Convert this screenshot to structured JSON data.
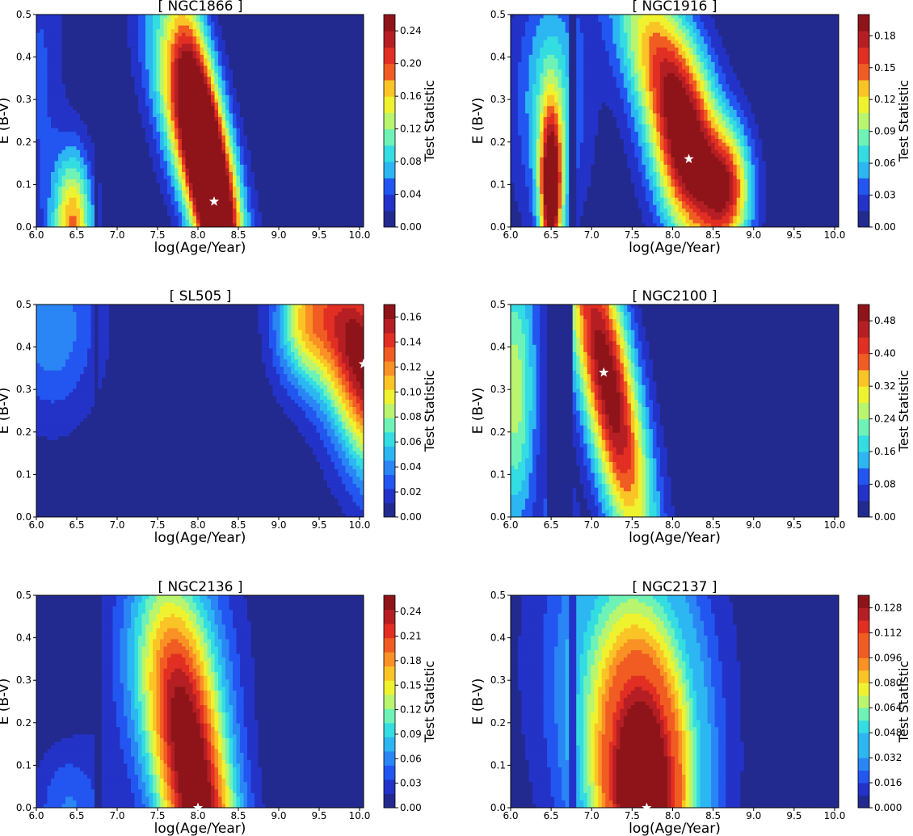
{
  "colors": {
    "jet": [
      "#232a8f",
      "#2333c8",
      "#2356f0",
      "#2a86f5",
      "#2cb6f2",
      "#33dde2",
      "#6ff2b6",
      "#b9f56f",
      "#eff32f",
      "#fbc426",
      "#fa9125",
      "#f05c22",
      "#e22e23",
      "#b51f24",
      "#8f1419"
    ],
    "star": "#ffffff",
    "axis": "#000000"
  },
  "chart_data": [
    {
      "type": "heatmap",
      "title": "[ NGC1866 ]",
      "xlabel": "log(Age/Year)",
      "ylabel": "E (B-V)",
      "colorbar_label": "Test Statistic",
      "xlim": [
        6.0,
        10.05
      ],
      "ylim": [
        0.0,
        0.5
      ],
      "xticks": [
        "6.0",
        "6.5",
        "7.0",
        "7.5",
        "8.0",
        "8.5",
        "9.0",
        "9.5",
        "10.0"
      ],
      "yticks": [
        "0.0",
        "0.1",
        "0.2",
        "0.3",
        "0.4",
        "0.5"
      ],
      "cbar_ticks": [
        "0.00",
        "0.04",
        "0.08",
        "0.12",
        "0.16",
        "0.20",
        "0.24"
      ],
      "vmax": 0.26,
      "levels": 13,
      "best_fit": {
        "x": 8.2,
        "y": 0.06
      },
      "bumps": [
        {
          "x": 8.2,
          "y": 0.06,
          "a": 0.265,
          "sx": 0.33,
          "sy": 0.34,
          "rho": -0.82
        },
        {
          "x": 7.95,
          "y": 0.21,
          "a": 0.19,
          "sx": 0.38,
          "sy": 0.2,
          "rho": -0.7
        },
        {
          "x": 6.45,
          "y": 0.0,
          "a": 0.18,
          "sx": 0.17,
          "sy": 0.12,
          "rho": 0
        },
        {
          "x": 6.05,
          "y": 0.35,
          "a": 0.04,
          "sx": 0.2,
          "sy": 0.3,
          "rho": 0
        }
      ],
      "wall": {
        "from": 6.7,
        "to": 6.78,
        "factor": 0.1
      }
    },
    {
      "type": "heatmap",
      "title": "[ NGC1916 ]",
      "xlabel": "log(Age/Year)",
      "ylabel": "E (B-V)",
      "colorbar_label": "Test Statistic",
      "xlim": [
        6.0,
        10.05
      ],
      "ylim": [
        0.0,
        0.5
      ],
      "xticks": [
        "6.0",
        "6.5",
        "7.0",
        "7.5",
        "8.0",
        "8.5",
        "9.0",
        "9.5",
        "10.0"
      ],
      "yticks": [
        "0.0",
        "0.1",
        "0.2",
        "0.3",
        "0.4",
        "0.5"
      ],
      "cbar_ticks": [
        "0.00",
        "0.03",
        "0.06",
        "0.09",
        "0.12",
        "0.15",
        "0.18"
      ],
      "vmax": 0.2,
      "levels": 13,
      "best_fit": {
        "x": 8.2,
        "y": 0.16
      },
      "bumps": [
        {
          "x": 8.2,
          "y": 0.16,
          "a": 0.19,
          "sx": 0.33,
          "sy": 0.16,
          "rho": -0.35
        },
        {
          "x": 8.7,
          "y": 0.09,
          "a": 0.12,
          "sx": 0.2,
          "sy": 0.1,
          "rho": 0
        },
        {
          "x": 7.8,
          "y": 0.42,
          "a": 0.11,
          "sx": 0.4,
          "sy": 0.15,
          "rho": -0.5
        },
        {
          "x": 6.5,
          "y": 0.08,
          "a": 0.2,
          "sx": 0.1,
          "sy": 0.14,
          "rho": 0
        },
        {
          "x": 6.5,
          "y": 0.3,
          "a": 0.07,
          "sx": 0.3,
          "sy": 0.2,
          "rho": 0
        }
      ],
      "wall": {
        "from": 6.72,
        "to": 6.8,
        "factor": 0.25
      }
    },
    {
      "type": "heatmap",
      "title": "[ SL505 ]",
      "xlabel": "log(Age/Year)",
      "ylabel": "E (B-V)",
      "colorbar_label": "Test Statistic",
      "xlim": [
        6.0,
        10.05
      ],
      "ylim": [
        0.0,
        0.5
      ],
      "xticks": [
        "6.0",
        "6.5",
        "7.0",
        "7.5",
        "8.0",
        "8.5",
        "9.0",
        "9.5",
        "10.0"
      ],
      "yticks": [
        "0.0",
        "0.1",
        "0.2",
        "0.3",
        "0.4",
        "0.5"
      ],
      "cbar_ticks": [
        "0.00",
        "0.02",
        "0.04",
        "0.06",
        "0.08",
        "0.10",
        "0.12",
        "0.14",
        "0.16"
      ],
      "vmax": 0.17,
      "levels": 15,
      "best_fit": {
        "x": 10.05,
        "y": 0.36
      },
      "bumps": [
        {
          "x": 10.05,
          "y": 0.37,
          "a": 0.17,
          "sx": 0.45,
          "sy": 0.2,
          "rho": -0.5
        },
        {
          "x": 9.3,
          "y": 0.45,
          "a": 0.07,
          "sx": 0.25,
          "sy": 0.1,
          "rho": 0
        },
        {
          "x": 6.2,
          "y": 0.45,
          "a": 0.04,
          "sx": 0.4,
          "sy": 0.15,
          "rho": 0
        }
      ],
      "wall": {
        "from": 6.72,
        "to": 6.78,
        "factor": 0.3
      }
    },
    {
      "type": "heatmap",
      "title": "[ NGC2100 ]",
      "xlabel": "log(Age/Year)",
      "ylabel": "E (B-V)",
      "colorbar_label": "Test Statistic",
      "xlim": [
        6.0,
        10.05
      ],
      "ylim": [
        0.0,
        0.5
      ],
      "xticks": [
        "6.0",
        "6.5",
        "7.0",
        "7.5",
        "8.0",
        "8.5",
        "9.0",
        "9.5",
        "10.0"
      ],
      "yticks": [
        "0.0",
        "0.1",
        "0.2",
        "0.3",
        "0.4",
        "0.5"
      ],
      "cbar_ticks": [
        "0.00",
        "0.08",
        "0.16",
        "0.24",
        "0.32",
        "0.40",
        "0.48"
      ],
      "vmax": 0.52,
      "levels": 13,
      "best_fit": {
        "x": 7.15,
        "y": 0.34
      },
      "bumps": [
        {
          "x": 7.2,
          "y": 0.32,
          "a": 0.52,
          "sx": 0.38,
          "sy": 0.3,
          "rho": -0.75
        },
        {
          "x": 6.05,
          "y": 0.3,
          "a": 0.26,
          "sx": 0.2,
          "sy": 0.25,
          "rho": 0
        },
        {
          "x": 6.6,
          "y": 0.0,
          "a": 0.2,
          "sx": 0.12,
          "sy": 0.05,
          "rho": 0
        }
      ],
      "wall": {
        "from": 6.45,
        "to": 6.75,
        "factor": 0.12
      }
    },
    {
      "type": "heatmap",
      "title": "[ NGC2136 ]",
      "xlabel": "log(Age/Year)",
      "ylabel": "E (B-V)",
      "colorbar_label": "Test Statistic",
      "xlim": [
        6.0,
        10.05
      ],
      "ylim": [
        0.0,
        0.5
      ],
      "xticks": [
        "6.0",
        "6.5",
        "7.0",
        "7.5",
        "8.0",
        "8.5",
        "9.0",
        "9.5",
        "10.0"
      ],
      "yticks": [
        "0.0",
        "0.1",
        "0.2",
        "0.3",
        "0.4",
        "0.5"
      ],
      "cbar_ticks": [
        "0.00",
        "0.03",
        "0.06",
        "0.09",
        "0.12",
        "0.15",
        "0.18",
        "0.21",
        "0.24"
      ],
      "vmax": 0.26,
      "levels": 15,
      "best_fit": {
        "x": 8.0,
        "y": 0.0
      },
      "bumps": [
        {
          "x": 8.0,
          "y": 0.0,
          "a": 0.26,
          "sx": 0.4,
          "sy": 0.3,
          "rho": -0.55
        },
        {
          "x": 7.7,
          "y": 0.35,
          "a": 0.08,
          "sx": 0.5,
          "sy": 0.2,
          "rho": 0
        },
        {
          "x": 6.4,
          "y": 0.0,
          "a": 0.05,
          "sx": 0.3,
          "sy": 0.1,
          "rho": 0
        }
      ],
      "wall": {
        "from": 6.72,
        "to": 6.8,
        "factor": 0.3
      }
    },
    {
      "type": "heatmap",
      "title": "[ NGC2137 ]",
      "xlabel": "log(Age/Year)",
      "ylabel": "E (B-V)",
      "colorbar_label": "Test Statistic",
      "xlim": [
        6.0,
        10.05
      ],
      "ylim": [
        0.0,
        0.5
      ],
      "xticks": [
        "6.0",
        "6.5",
        "7.0",
        "7.5",
        "8.0",
        "8.5",
        "9.0",
        "9.5",
        "10.0"
      ],
      "yticks": [
        "0.0",
        "0.1",
        "0.2",
        "0.3",
        "0.4",
        "0.5"
      ],
      "cbar_ticks": [
        "0.000",
        "0.016",
        "0.032",
        "0.048",
        "0.064",
        "0.080",
        "0.096",
        "0.112",
        "0.128"
      ],
      "vmax": 0.136,
      "levels": 17,
      "best_fit": {
        "x": 7.68,
        "y": 0.0
      },
      "bumps": [
        {
          "x": 7.65,
          "y": 0.0,
          "a": 0.136,
          "sx": 0.45,
          "sy": 0.25,
          "rho": 0
        },
        {
          "x": 7.4,
          "y": 0.35,
          "a": 0.05,
          "sx": 0.6,
          "sy": 0.25,
          "rho": 0
        }
      ],
      "wall": {
        "from": 6.72,
        "to": 6.8,
        "factor": 0.3
      }
    }
  ]
}
